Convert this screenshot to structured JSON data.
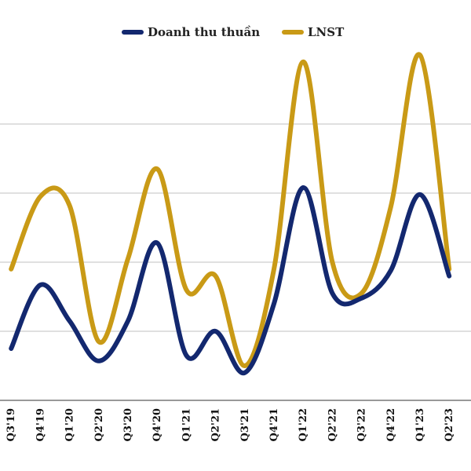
{
  "chart_data": {
    "type": "line",
    "title": "",
    "xlabel": "",
    "ylabel": "",
    "categories": [
      "Q3'19",
      "Q4'19",
      "Q1'20",
      "Q2'20",
      "Q3'20",
      "Q4'20",
      "Q1'21",
      "Q2'21",
      "Q3'21",
      "Q4'21",
      "Q1'22",
      "Q2'22",
      "Q3'22",
      "Q4'22",
      "Q1'23",
      "Q2'23"
    ],
    "series": [
      {
        "name": "Doanh thu thuần",
        "color": "#13286f",
        "values": [
          0.75,
          1.67,
          1.15,
          0.57,
          1.15,
          2.28,
          0.65,
          1.0,
          0.4,
          1.4,
          3.08,
          1.55,
          1.48,
          1.88,
          2.98,
          1.8
        ]
      },
      {
        "name": "LNST",
        "color": "#c99a16",
        "values": [
          1.9,
          2.95,
          2.82,
          0.85,
          2.05,
          3.35,
          1.6,
          1.8,
          0.5,
          1.9,
          4.9,
          2.0,
          1.55,
          2.8,
          5.0,
          1.9
        ]
      }
    ],
    "ylim": [
      0,
      5.0
    ],
    "grid": true,
    "legend": "top-center"
  }
}
